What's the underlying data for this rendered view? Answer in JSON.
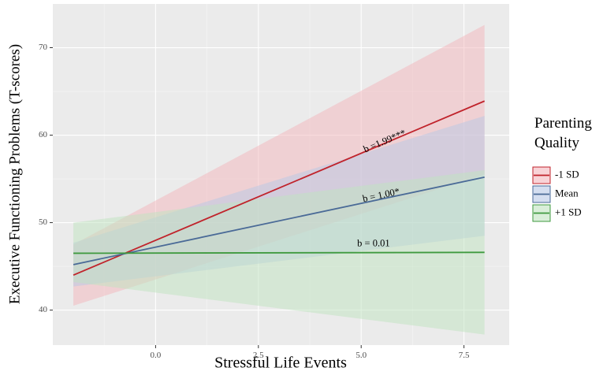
{
  "chart_data": {
    "type": "line",
    "xlabel": "Stressful Life Events",
    "ylabel": "Executive Functioning Problems (T-scores)",
    "xlim": [
      -2.5,
      8.6
    ],
    "ylim": [
      36,
      75
    ],
    "xticks": [
      0.0,
      2.5,
      5.0,
      7.5
    ],
    "xtick_labels": [
      "0.0",
      "2.5",
      "5.0",
      "7.5"
    ],
    "yticks": [
      40,
      50,
      60,
      70
    ],
    "ytick_labels": [
      "40",
      "50",
      "60",
      "70"
    ],
    "grid": true,
    "legend": {
      "title_line1": "Parenting",
      "title_line2": "Quality",
      "placement": "right"
    },
    "series": [
      {
        "name": "-1 SD",
        "color": "#c0232b",
        "fill": "#f4b6bc",
        "x": [
          -2.0,
          8.0
        ],
        "y": [
          44.0,
          63.9
        ],
        "ci_lower": [
          40.5,
          55.5
        ],
        "ci_upper": [
          47.5,
          72.6
        ],
        "annotation": "b =1.99***",
        "anno_x": 5.6,
        "anno_y": 59.0
      },
      {
        "name": "Mean",
        "color": "#4a6a97",
        "fill": "#b7c8e6",
        "x": [
          -2.0,
          8.0
        ],
        "y": [
          45.2,
          55.2
        ],
        "ci_lower": [
          42.7,
          48.5
        ],
        "ci_upper": [
          47.7,
          62.2
        ],
        "annotation": "b = 1.00*",
        "anno_x": 5.5,
        "anno_y": 52.8
      },
      {
        "name": "+1 SD",
        "color": "#3f9a3f",
        "fill": "#bfe3bf",
        "x": [
          -2.0,
          8.0
        ],
        "y": [
          46.5,
          46.6
        ],
        "ci_lower": [
          43.2,
          37.2
        ],
        "ci_upper": [
          50.0,
          56.0
        ],
        "annotation": "b = 0.01",
        "anno_x": 5.3,
        "anno_y": 47.3
      }
    ]
  }
}
